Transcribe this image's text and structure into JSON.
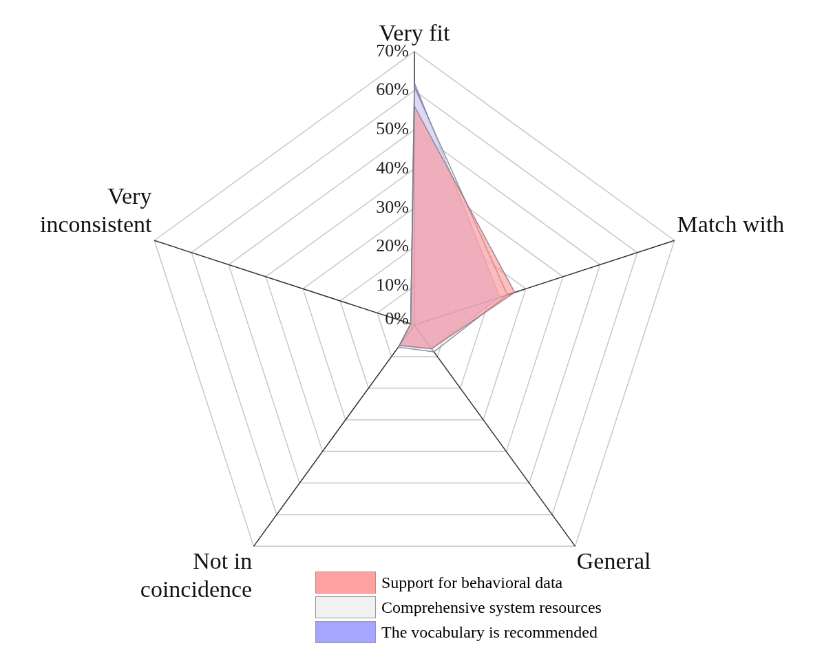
{
  "chart_data": {
    "type": "radar",
    "categories": [
      "Very fit",
      "Match with",
      "General",
      "Not in coincidence",
      "Very inconsistent"
    ],
    "ylim": [
      0,
      70
    ],
    "yticks": [
      {
        "value": 0,
        "label": "0%"
      },
      {
        "value": 10,
        "label": "10%"
      },
      {
        "value": 20,
        "label": "20%"
      },
      {
        "value": 30,
        "label": "30%"
      },
      {
        "value": 40,
        "label": "40%"
      },
      {
        "value": 50,
        "label": "50%"
      },
      {
        "value": 60,
        "label": "60%"
      },
      {
        "value": 70,
        "label": "70%"
      }
    ],
    "series": [
      {
        "name": "Support for behavioral data",
        "color": "#ff8a8a",
        "values": [
          56,
          27,
          7.5,
          6.5,
          1
        ]
      },
      {
        "name": "Comprehensive system resources",
        "color": "#eeeeee",
        "values": [
          61,
          25,
          8.5,
          7,
          1
        ]
      },
      {
        "name": "The vocabulary is recommended",
        "color": "#9090ff",
        "values": [
          62,
          23,
          7.5,
          6.5,
          1
        ]
      }
    ],
    "grid": true,
    "legend": "bottom"
  }
}
